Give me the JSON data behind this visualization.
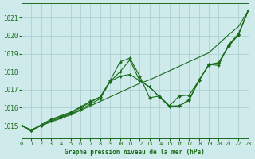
{
  "title": "Graphe pression niveau de la mer (hPa)",
  "background_color": "#ceeaea",
  "grid_color": "#aed0d0",
  "line_color": "#1a6b1a",
  "xlim": [
    0,
    23
  ],
  "ylim": [
    1014.3,
    1021.8
  ],
  "yticks": [
    1015,
    1016,
    1017,
    1018,
    1019,
    1020,
    1021
  ],
  "xticks": [
    0,
    1,
    2,
    3,
    4,
    5,
    6,
    7,
    8,
    9,
    10,
    11,
    12,
    13,
    14,
    15,
    16,
    17,
    18,
    19,
    20,
    21,
    22,
    23
  ],
  "series": [
    {
      "y": [
        1015.0,
        1014.75,
        1015.0,
        1015.2,
        1015.4,
        1015.6,
        1015.85,
        1016.1,
        1016.35,
        1016.6,
        1016.85,
        1017.1,
        1017.35,
        1017.55,
        1017.8,
        1018.05,
        1018.3,
        1018.55,
        1018.8,
        1019.05,
        1019.55,
        1020.05,
        1020.5,
        1021.4
      ],
      "marker": false
    },
    {
      "y": [
        1015.0,
        1014.75,
        1015.0,
        1015.25,
        1015.45,
        1015.65,
        1015.9,
        1016.2,
        1016.5,
        1017.45,
        1017.75,
        1017.85,
        1017.5,
        1017.15,
        1016.6,
        1016.1,
        1016.1,
        1016.4,
        1017.5,
        1018.4,
        1018.5,
        1019.4,
        1020.05,
        1021.4
      ],
      "marker": true
    },
    {
      "y": [
        1015.0,
        1014.75,
        1015.0,
        1015.3,
        1015.5,
        1015.7,
        1016.0,
        1016.3,
        1016.6,
        1017.45,
        1018.0,
        1018.65,
        1017.5,
        1017.15,
        1016.6,
        1016.05,
        1016.1,
        1016.45,
        1017.55,
        1018.35,
        1018.5,
        1019.45,
        1020.05,
        1021.4
      ],
      "marker": true
    },
    {
      "y": [
        1015.0,
        1014.75,
        1015.05,
        1015.35,
        1015.55,
        1015.75,
        1016.05,
        1016.35,
        1016.6,
        1017.5,
        1018.55,
        1018.75,
        1017.75,
        1016.55,
        1016.65,
        1016.1,
        1016.65,
        1016.7,
        1017.5,
        1018.4,
        1018.35,
        1019.5,
        1020.1,
        1021.4
      ],
      "marker": true
    }
  ]
}
